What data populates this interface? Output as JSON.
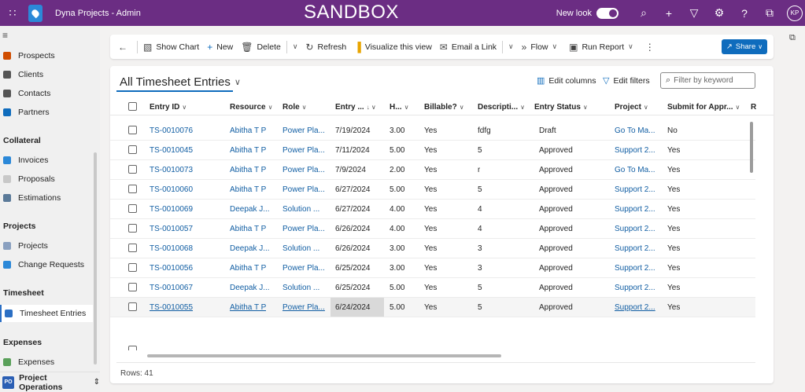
{
  "topbar": {
    "app_title": "Dyna Projects - Admin",
    "environment": "SANDBOX",
    "new_look_label": "New look",
    "new_look_on": true,
    "avatar_initials": "KP",
    "bg_color": "#6b2d83"
  },
  "nav": {
    "items_top": [
      {
        "label": "Prospects",
        "icon": "prospects-icon",
        "color": "#d04d00"
      },
      {
        "label": "Clients",
        "icon": "clients-icon",
        "color": "#555555"
      },
      {
        "label": "Contacts",
        "icon": "contacts-icon",
        "color": "#555555"
      },
      {
        "label": "Partners",
        "icon": "partners-icon",
        "color": "#0f6cbd"
      }
    ],
    "group_collateral": "Collateral",
    "items_collateral": [
      {
        "label": "Invoices",
        "icon": "invoices-icon",
        "color": "#2b88d8"
      },
      {
        "label": "Proposals",
        "icon": "proposals-icon",
        "color": "#c8c8c8"
      },
      {
        "label": "Estimations",
        "icon": "estimations-icon",
        "color": "#5b7a99"
      }
    ],
    "group_projects": "Projects",
    "items_projects": [
      {
        "label": "Projects",
        "icon": "projects-icon",
        "color": "#8aa0c0"
      },
      {
        "label": "Change Requests",
        "icon": "change-requests-icon",
        "color": "#2b88d8"
      }
    ],
    "group_timesheet": "Timesheet",
    "items_timesheet": [
      {
        "label": "Timesheet Entries",
        "icon": "timesheet-icon",
        "color": "#2b6fc4"
      }
    ],
    "group_expenses": "Expenses",
    "items_expenses": [
      {
        "label": "Expenses",
        "icon": "expenses-icon",
        "color": "#5aa05a"
      }
    ],
    "area_badge": "PO",
    "area_label": "Project Operations"
  },
  "commands": {
    "show_chart": "Show Chart",
    "new": "New",
    "delete": "Delete",
    "refresh": "Refresh",
    "visualize": "Visualize this view",
    "email_link": "Email a Link",
    "flow": "Flow",
    "run_report": "Run Report",
    "share": "Share"
  },
  "view": {
    "title": "All Timesheet Entries",
    "edit_columns": "Edit columns",
    "edit_filters": "Edit filters",
    "filter_placeholder": "Filter by keyword",
    "rows_label": "Rows: 41"
  },
  "grid": {
    "headers": [
      "Entry ID",
      "Resource",
      "Role",
      "Entry ...",
      "H...",
      "Billable?",
      "Descripti...",
      "Entry Status",
      "Project",
      "Submit for Appr...",
      "R"
    ],
    "rows": [
      {
        "id": "TS-0010076",
        "resource": "Abitha T P",
        "role": "Power Pla...",
        "date": "7/19/2024",
        "hours": "3.00",
        "billable": "Yes",
        "desc": "fdfg",
        "status": "Draft",
        "project": "Go To Ma...",
        "submit": "No"
      },
      {
        "id": "TS-0010045",
        "resource": "Abitha T P",
        "role": "Power Pla...",
        "date": "7/11/2024",
        "hours": "5.00",
        "billable": "Yes",
        "desc": "5",
        "status": "Approved",
        "project": "Support 2...",
        "submit": "Yes"
      },
      {
        "id": "TS-0010073",
        "resource": "Abitha T P",
        "role": "Power Pla...",
        "date": "7/9/2024",
        "hours": "2.00",
        "billable": "Yes",
        "desc": "r",
        "status": "Approved",
        "project": "Go To Ma...",
        "submit": "Yes"
      },
      {
        "id": "TS-0010060",
        "resource": "Abitha T P",
        "role": "Power Pla...",
        "date": "6/27/2024",
        "hours": "5.00",
        "billable": "Yes",
        "desc": "5",
        "status": "Approved",
        "project": "Support 2...",
        "submit": "Yes"
      },
      {
        "id": "TS-0010069",
        "resource": "Deepak J...",
        "role": "Solution ...",
        "date": "6/27/2024",
        "hours": "4.00",
        "billable": "Yes",
        "desc": "4",
        "status": "Approved",
        "project": "Support 2...",
        "submit": "Yes"
      },
      {
        "id": "TS-0010057",
        "resource": "Abitha T P",
        "role": "Power Pla...",
        "date": "6/26/2024",
        "hours": "4.00",
        "billable": "Yes",
        "desc": "4",
        "status": "Approved",
        "project": "Support 2...",
        "submit": "Yes"
      },
      {
        "id": "TS-0010068",
        "resource": "Deepak J...",
        "role": "Solution ...",
        "date": "6/26/2024",
        "hours": "3.00",
        "billable": "Yes",
        "desc": "3",
        "status": "Approved",
        "project": "Support 2...",
        "submit": "Yes"
      },
      {
        "id": "TS-0010056",
        "resource": "Abitha T P",
        "role": "Power Pla...",
        "date": "6/25/2024",
        "hours": "3.00",
        "billable": "Yes",
        "desc": "3",
        "status": "Approved",
        "project": "Support 2...",
        "submit": "Yes"
      },
      {
        "id": "TS-0010067",
        "resource": "Deepak J...",
        "role": "Solution ...",
        "date": "6/25/2024",
        "hours": "5.00",
        "billable": "Yes",
        "desc": "5",
        "status": "Approved",
        "project": "Support 2...",
        "submit": "Yes"
      },
      {
        "id": "TS-0010055",
        "resource": "Abitha T P",
        "role": "Power Pla...",
        "date": "6/24/2024",
        "hours": "5.00",
        "billable": "Yes",
        "desc": "5",
        "status": "Approved",
        "project": "Support 2...",
        "submit": "Yes"
      }
    ]
  }
}
